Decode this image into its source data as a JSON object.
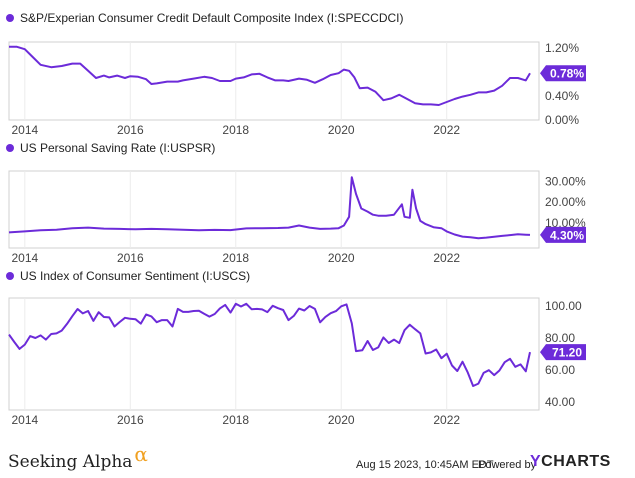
{
  "chart_data": [
    {
      "type": "line",
      "title": "S&P/Experian Consumer Credit Default Composite Index (I:SPECCDCI)",
      "color": "#6c2bd9",
      "x_ticks": [
        "2014",
        "2016",
        "2018",
        "2020",
        "2022"
      ],
      "y_ticks": [
        "1.20%",
        "0.80%",
        "0.40%",
        "0.00%"
      ],
      "ylim": [
        0.0,
        1.3
      ],
      "last_value_label": "0.78%",
      "series": [
        {
          "x": [
            2013.7,
            2013.85,
            2014.0,
            2014.15,
            2014.3,
            2014.5,
            2014.7,
            2014.9,
            2015.05,
            2015.2,
            2015.35,
            2015.5,
            2015.6,
            2015.75,
            2015.9,
            2016.0,
            2016.15,
            2016.3,
            2016.4,
            2016.5,
            2016.7,
            2016.9,
            2017.0,
            2017.2,
            2017.4,
            2017.55,
            2017.7,
            2017.9,
            2018.0,
            2018.15,
            2018.3,
            2018.45,
            2018.6,
            2018.75,
            2018.9,
            2019.0,
            2019.2,
            2019.35,
            2019.5,
            2019.65,
            2019.8,
            2019.95,
            2020.05,
            2020.15,
            2020.25,
            2020.35,
            2020.5,
            2020.65,
            2020.8,
            2020.95,
            2021.1,
            2021.25,
            2021.4,
            2021.55,
            2021.7,
            2021.85,
            2022.0,
            2022.15,
            2022.3,
            2022.45,
            2022.6,
            2022.75,
            2022.9,
            2023.05,
            2023.2,
            2023.35,
            2023.5,
            2023.58
          ],
          "y": [
            1.22,
            1.22,
            1.18,
            1.05,
            0.92,
            0.88,
            0.9,
            0.94,
            0.94,
            0.82,
            0.7,
            0.74,
            0.71,
            0.74,
            0.7,
            0.73,
            0.72,
            0.68,
            0.6,
            0.61,
            0.64,
            0.64,
            0.66,
            0.69,
            0.72,
            0.7,
            0.65,
            0.65,
            0.69,
            0.71,
            0.76,
            0.77,
            0.71,
            0.66,
            0.66,
            0.65,
            0.69,
            0.67,
            0.62,
            0.68,
            0.75,
            0.78,
            0.84,
            0.82,
            0.71,
            0.53,
            0.54,
            0.47,
            0.33,
            0.36,
            0.42,
            0.35,
            0.28,
            0.26,
            0.26,
            0.25,
            0.3,
            0.35,
            0.39,
            0.42,
            0.46,
            0.46,
            0.49,
            0.57,
            0.7,
            0.7,
            0.66,
            0.78
          ]
        }
      ]
    },
    {
      "type": "line",
      "title": "US Personal Saving Rate (I:USPSR)",
      "color": "#6c2bd9",
      "x_ticks": [
        "2014",
        "2016",
        "2018",
        "2020",
        "2022"
      ],
      "y_ticks": [
        "30.00%",
        "20.00%",
        "10.00%"
      ],
      "ylim": [
        -2,
        35
      ],
      "last_value_label": "4.30%",
      "series": [
        {
          "x": [
            2013.7,
            2014.0,
            2014.3,
            2014.6,
            2014.9,
            2015.2,
            2015.5,
            2015.8,
            2016.1,
            2016.4,
            2016.7,
            2017.0,
            2017.3,
            2017.6,
            2017.9,
            2018.2,
            2018.5,
            2018.8,
            2019.0,
            2019.2,
            2019.4,
            2019.6,
            2019.8,
            2019.95,
            2020.05,
            2020.15,
            2020.2,
            2020.28,
            2020.38,
            2020.5,
            2020.6,
            2020.7,
            2020.85,
            2021.0,
            2021.15,
            2021.2,
            2021.3,
            2021.35,
            2021.42,
            2021.5,
            2021.6,
            2021.75,
            2021.9,
            2022.0,
            2022.15,
            2022.3,
            2022.45,
            2022.6,
            2022.75,
            2022.9,
            2023.05,
            2023.2,
            2023.35,
            2023.5,
            2023.58
          ],
          "y": [
            5.5,
            6.0,
            6.5,
            6.8,
            7.5,
            7.8,
            7.3,
            7.2,
            7.0,
            7.2,
            7.0,
            6.8,
            6.5,
            6.7,
            6.6,
            7.4,
            7.5,
            7.6,
            7.8,
            8.8,
            7.8,
            7.2,
            7.3,
            7.5,
            8.8,
            13.0,
            32.0,
            24.0,
            17.0,
            15.5,
            14.0,
            13.5,
            13.5,
            14.0,
            19.0,
            13.0,
            12.5,
            26.0,
            17.0,
            11.0,
            9.5,
            8.0,
            7.5,
            6.0,
            4.5,
            3.5,
            3.2,
            2.7,
            3.0,
            3.4,
            3.8,
            4.2,
            4.6,
            4.4,
            4.3
          ]
        }
      ]
    },
    {
      "type": "line",
      "title": "US Index of Consumer Sentiment (I:USCS)",
      "color": "#6c2bd9",
      "x_ticks": [
        "2014",
        "2016",
        "2018",
        "2020",
        "2022"
      ],
      "y_ticks": [
        "100.00",
        "80.00",
        "60.00",
        "40.00"
      ],
      "ylim": [
        35,
        105
      ],
      "last_value_label": "71.20",
      "series": [
        {
          "x": [
            2013.7,
            2013.8,
            2013.9,
            2014.0,
            2014.1,
            2014.2,
            2014.3,
            2014.4,
            2014.5,
            2014.6,
            2014.7,
            2014.8,
            2014.9,
            2015.0,
            2015.1,
            2015.2,
            2015.3,
            2015.4,
            2015.5,
            2015.6,
            2015.7,
            2015.8,
            2015.9,
            2016.0,
            2016.1,
            2016.2,
            2016.3,
            2016.4,
            2016.5,
            2016.6,
            2016.7,
            2016.8,
            2016.9,
            2017.0,
            2017.1,
            2017.2,
            2017.3,
            2017.4,
            2017.5,
            2017.6,
            2017.7,
            2017.8,
            2017.9,
            2018.0,
            2018.1,
            2018.2,
            2018.3,
            2018.4,
            2018.5,
            2018.6,
            2018.7,
            2018.8,
            2018.9,
            2019.0,
            2019.1,
            2019.2,
            2019.3,
            2019.4,
            2019.5,
            2019.6,
            2019.7,
            2019.8,
            2019.9,
            2020.0,
            2020.1,
            2020.2,
            2020.28,
            2020.4,
            2020.5,
            2020.6,
            2020.7,
            2020.8,
            2020.9,
            2021.0,
            2021.1,
            2021.2,
            2021.3,
            2021.4,
            2021.5,
            2021.6,
            2021.7,
            2021.8,
            2021.9,
            2022.0,
            2022.1,
            2022.2,
            2022.3,
            2022.4,
            2022.5,
            2022.6,
            2022.7,
            2022.8,
            2022.9,
            2023.0,
            2023.1,
            2023.2,
            2023.3,
            2023.4,
            2023.5,
            2023.58
          ],
          "y": [
            82.1,
            77.5,
            73.2,
            75.9,
            81.2,
            80.0,
            81.6,
            79.0,
            82.5,
            82.9,
            84.6,
            88.8,
            93.6,
            98.1,
            95.4,
            96.9,
            90.7,
            96.1,
            93.1,
            92.9,
            87.2,
            90.0,
            92.6,
            92.0,
            91.7,
            89.0,
            94.7,
            93.5,
            89.9,
            91.2,
            91.2,
            87.2,
            98.2,
            96.3,
            96.3,
            96.9,
            97.0,
            95.1,
            93.4,
            95.0,
            98.5,
            100.7,
            95.9,
            101.4,
            99.7,
            101.4,
            98.0,
            98.2,
            97.9,
            96.2,
            100.1,
            98.6,
            97.5,
            91.2,
            93.8,
            98.4,
            97.2,
            100.0,
            98.2,
            89.8,
            93.2,
            95.5,
            96.8,
            99.8,
            101.0,
            89.1,
            71.8,
            72.3,
            78.1,
            72.5,
            74.1,
            80.4,
            76.9,
            79.0,
            76.8,
            84.9,
            88.3,
            85.5,
            82.9,
            70.3,
            71.0,
            72.8,
            67.4,
            70.2,
            62.8,
            59.4,
            65.2,
            58.4,
            50.0,
            51.5,
            58.2,
            59.9,
            56.8,
            59.7,
            64.9,
            67.0,
            62.0,
            63.5,
            59.2,
            71.2
          ]
        }
      ]
    }
  ],
  "footer": {
    "brand": "Seeking Alpha",
    "brand_mark": "α",
    "timestamp": "Aug 15 2023, 10:45AM EDT.",
    "powered_by": "Powered by",
    "ycharts_y": "Y",
    "ycharts_rest": "CHARTS"
  }
}
